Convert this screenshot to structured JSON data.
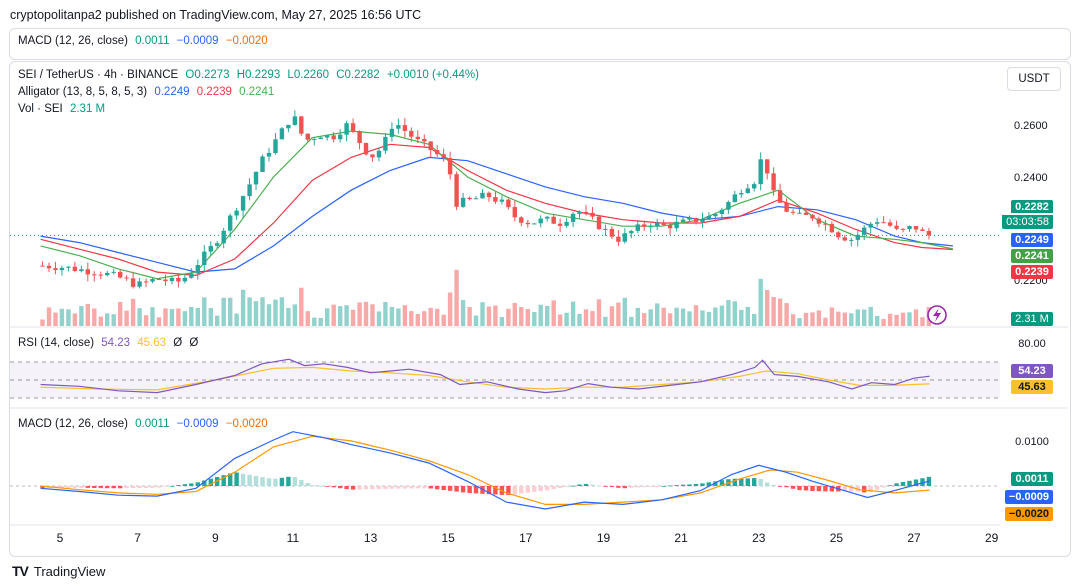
{
  "header": "cryptopolitanpa2 published on TradingView.com, May 27, 2025 16:56 UTC",
  "top_legend": {
    "name": "MACD (12, 26, close)",
    "v1": "0.0011",
    "v2": "−0.0009",
    "v3": "−0.0020"
  },
  "symbol_line": {
    "pair": "SEI / TetherUS · 4h · BINANCE",
    "o": "O0.2273",
    "h": "H0.2293",
    "l": "L0.2260",
    "c": "C0.2282",
    "chg": "+0.0010 (+0.44%)"
  },
  "alligator": {
    "name": "Alligator (13, 8, 5, 8, 5, 3)",
    "jaw": "0.2249",
    "teeth": "0.2239",
    "lips": "0.2241"
  },
  "volume": {
    "name": "Vol · SEI",
    "value": "2.31 M",
    "tag": "2.31 M"
  },
  "currency_button": "USDT",
  "price_axis": {
    "ticks": [
      "0.2600",
      "0.2400",
      "0.2200"
    ],
    "last_price": "0.2282",
    "countdown": "03:03:58",
    "jaw_tag": "0.2249",
    "lips_tag": "0.2241",
    "teeth_tag": "0.2239"
  },
  "rsi": {
    "name": "RSI (14, close)",
    "value": "54.23",
    "ma": "45.63",
    "z1": "Ø",
    "z2": "Ø",
    "level": "80.00"
  },
  "macd": {
    "name": "MACD (12, 26, close)",
    "v1": "0.0011",
    "v2": "−0.0009",
    "v3": "−0.0020",
    "level": "0.0100"
  },
  "x_ticks": [
    "5",
    "7",
    "9",
    "11",
    "13",
    "15",
    "17",
    "19",
    "21",
    "23",
    "25",
    "27",
    "29"
  ],
  "footer": "TradingView",
  "colors": {
    "up": "#26a69a",
    "down": "#ef5350",
    "jaw": "#2962ff",
    "teeth": "#f23645",
    "lips": "#4caf50",
    "rsi": "#7e57c2",
    "rsi_ma": "#fbc02d",
    "macd": "#2962ff",
    "signal": "#ff9800"
  },
  "chart_data": [
    {
      "type": "candlestick",
      "title": "SEI / TetherUS · 4h · BINANCE",
      "x_label_unit": "day of month (May 2025)",
      "x_ticks": [
        5,
        7,
        9,
        11,
        13,
        15,
        17,
        19,
        21,
        23,
        25,
        27,
        29
      ],
      "ylim": [
        0.2085,
        0.2695
      ],
      "y_ticks": [
        0.26,
        0.24,
        0.22
      ],
      "close_path": [
        [
          4.5,
          0.219
        ],
        [
          5.0,
          0.2186
        ],
        [
          5.5,
          0.2178
        ],
        [
          6.0,
          0.217
        ],
        [
          6.5,
          0.2155
        ],
        [
          7.0,
          0.213
        ],
        [
          7.5,
          0.215
        ],
        [
          8.0,
          0.2138
        ],
        [
          8.3,
          0.216
        ],
        [
          8.6,
          0.2205
        ],
        [
          9.0,
          0.226
        ],
        [
          9.4,
          0.234
        ],
        [
          9.8,
          0.242
        ],
        [
          10.2,
          0.251
        ],
        [
          10.6,
          0.258
        ],
        [
          11.0,
          0.265
        ],
        [
          11.3,
          0.257
        ],
        [
          11.7,
          0.259
        ],
        [
          12.0,
          0.258
        ],
        [
          12.4,
          0.262
        ],
        [
          12.7,
          0.257
        ],
        [
          13.0,
          0.252
        ],
        [
          13.3,
          0.255
        ],
        [
          13.6,
          0.263
        ],
        [
          13.9,
          0.26
        ],
        [
          14.2,
          0.257
        ],
        [
          14.6,
          0.254
        ],
        [
          15.0,
          0.25
        ],
        [
          15.2,
          0.238
        ],
        [
          15.6,
          0.239
        ],
        [
          16.0,
          0.2405
        ],
        [
          16.4,
          0.238
        ],
        [
          16.7,
          0.234
        ],
        [
          17.1,
          0.232
        ],
        [
          17.5,
          0.233
        ],
        [
          17.9,
          0.232
        ],
        [
          18.3,
          0.236
        ],
        [
          18.7,
          0.233
        ],
        [
          19.0,
          0.23
        ],
        [
          19.4,
          0.227
        ],
        [
          19.8,
          0.23
        ],
        [
          20.2,
          0.232
        ],
        [
          20.6,
          0.231
        ],
        [
          21.0,
          0.232
        ],
        [
          21.4,
          0.233
        ],
        [
          21.8,
          0.234
        ],
        [
          22.2,
          0.238
        ],
        [
          22.6,
          0.243
        ],
        [
          22.9,
          0.245
        ],
        [
          23.1,
          0.253
        ],
        [
          23.4,
          0.24
        ],
        [
          23.7,
          0.236
        ],
        [
          24.0,
          0.234
        ],
        [
          24.4,
          0.234
        ],
        [
          24.8,
          0.231
        ],
        [
          25.1,
          0.228
        ],
        [
          25.4,
          0.227
        ],
        [
          25.7,
          0.23
        ],
        [
          26.0,
          0.233
        ],
        [
          26.3,
          0.232
        ],
        [
          26.6,
          0.229
        ],
        [
          27.0,
          0.231
        ],
        [
          27.3,
          0.2282
        ]
      ],
      "alligator": {
        "jaw": [
          [
            4.5,
            0.228
          ],
          [
            5.5,
            0.226
          ],
          [
            6.5,
            0.223
          ],
          [
            7.5,
            0.22
          ],
          [
            8.5,
            0.217
          ],
          [
            9.5,
            0.218
          ],
          [
            10.5,
            0.225
          ],
          [
            11.5,
            0.234
          ],
          [
            12.5,
            0.242
          ],
          [
            13.5,
            0.248
          ],
          [
            14.5,
            0.252
          ],
          [
            15.5,
            0.251
          ],
          [
            16.5,
            0.247
          ],
          [
            17.5,
            0.243
          ],
          [
            18.5,
            0.24
          ],
          [
            19.5,
            0.238
          ],
          [
            20.5,
            0.235
          ],
          [
            21.5,
            0.233
          ],
          [
            22.5,
            0.234
          ],
          [
            23.5,
            0.237
          ],
          [
            24.5,
            0.236
          ],
          [
            25.5,
            0.233
          ],
          [
            26.5,
            0.228
          ],
          [
            27.2,
            0.226
          ],
          [
            28.0,
            0.225
          ]
        ],
        "teeth": [
          [
            4.5,
            0.227
          ],
          [
            5.5,
            0.224
          ],
          [
            6.5,
            0.221
          ],
          [
            7.5,
            0.217
          ],
          [
            8.5,
            0.216
          ],
          [
            9.5,
            0.221
          ],
          [
            10.5,
            0.232
          ],
          [
            11.5,
            0.245
          ],
          [
            12.5,
            0.252
          ],
          [
            13.5,
            0.256
          ],
          [
            14.5,
            0.255
          ],
          [
            15.5,
            0.248
          ],
          [
            16.5,
            0.242
          ],
          [
            17.5,
            0.238
          ],
          [
            18.5,
            0.235
          ],
          [
            19.5,
            0.233
          ],
          [
            20.5,
            0.232
          ],
          [
            21.5,
            0.232
          ],
          [
            22.5,
            0.234
          ],
          [
            23.5,
            0.239
          ],
          [
            24.5,
            0.235
          ],
          [
            25.5,
            0.23
          ],
          [
            26.5,
            0.226
          ],
          [
            27.2,
            0.2245
          ],
          [
            28.0,
            0.2239
          ]
        ],
        "lips": [
          [
            4.5,
            0.225
          ],
          [
            5.5,
            0.222
          ],
          [
            6.5,
            0.218
          ],
          [
            7.5,
            0.215
          ],
          [
            8.5,
            0.217
          ],
          [
            9.5,
            0.23
          ],
          [
            10.5,
            0.246
          ],
          [
            11.5,
            0.258
          ],
          [
            12.5,
            0.26
          ],
          [
            13.5,
            0.259
          ],
          [
            14.5,
            0.256
          ],
          [
            15.5,
            0.246
          ],
          [
            16.5,
            0.24
          ],
          [
            17.5,
            0.235
          ],
          [
            18.5,
            0.233
          ],
          [
            19.5,
            0.231
          ],
          [
            20.5,
            0.231
          ],
          [
            21.5,
            0.233
          ],
          [
            22.5,
            0.238
          ],
          [
            23.5,
            0.242
          ],
          [
            24.5,
            0.233
          ],
          [
            25.5,
            0.228
          ],
          [
            26.5,
            0.227
          ],
          [
            27.2,
            0.226
          ],
          [
            28.0,
            0.2241
          ]
        ]
      }
    },
    {
      "type": "line",
      "title": "RSI (14, close)",
      "ylim": [
        20,
        85
      ],
      "bands": [
        70,
        50,
        30
      ],
      "series": [
        {
          "name": "RSI",
          "values": [
            [
              4.5,
              45
            ],
            [
              5.5,
              43
            ],
            [
              6.5,
              38
            ],
            [
              7.5,
              36
            ],
            [
              8.5,
              45
            ],
            [
              9.5,
              55
            ],
            [
              10.2,
              68
            ],
            [
              10.9,
              73
            ],
            [
              11.3,
              66
            ],
            [
              11.8,
              68
            ],
            [
              12.4,
              64
            ],
            [
              13.0,
              58
            ],
            [
              13.5,
              60
            ],
            [
              14.0,
              62
            ],
            [
              14.8,
              56
            ],
            [
              15.3,
              45
            ],
            [
              16.0,
              48
            ],
            [
              16.8,
              40
            ],
            [
              17.5,
              36
            ],
            [
              18.0,
              38
            ],
            [
              18.6,
              46
            ],
            [
              19.2,
              42
            ],
            [
              19.9,
              40
            ],
            [
              20.7,
              44
            ],
            [
              21.5,
              48
            ],
            [
              22.3,
              56
            ],
            [
              22.9,
              64
            ],
            [
              23.1,
              72
            ],
            [
              23.4,
              56
            ],
            [
              24.0,
              54
            ],
            [
              24.8,
              48
            ],
            [
              25.4,
              40
            ],
            [
              25.9,
              47
            ],
            [
              26.5,
              45
            ],
            [
              27.0,
              52
            ],
            [
              27.4,
              54.23
            ]
          ]
        },
        {
          "name": "RSI-based MA",
          "values": [
            [
              4.5,
              42
            ],
            [
              6.0,
              40
            ],
            [
              7.5,
              39
            ],
            [
              9.0,
              50
            ],
            [
              10.5,
              63
            ],
            [
              11.5,
              64
            ],
            [
              12.5,
              60
            ],
            [
              13.5,
              58
            ],
            [
              14.5,
              55
            ],
            [
              15.5,
              48
            ],
            [
              16.5,
              42
            ],
            [
              17.5,
              40
            ],
            [
              18.5,
              42
            ],
            [
              19.5,
              42
            ],
            [
              20.5,
              45
            ],
            [
              21.5,
              48
            ],
            [
              22.5,
              54
            ],
            [
              23.2,
              60
            ],
            [
              24.0,
              57
            ],
            [
              24.8,
              50
            ],
            [
              25.6,
              44
            ],
            [
              26.4,
              44
            ],
            [
              27.4,
              45.63
            ]
          ]
        }
      ]
    },
    {
      "type": "line",
      "title": "MACD (12, 26, close)",
      "ylim": [
        -0.0085,
        0.0135
      ],
      "y_ticks": [
        0.01
      ],
      "series": [
        {
          "name": "MACD",
          "values": [
            [
              4.5,
              -0.0005
            ],
            [
              5.5,
              -0.0012
            ],
            [
              6.5,
              -0.002
            ],
            [
              7.5,
              -0.0022
            ],
            [
              8.5,
              -0.0005
            ],
            [
              9.5,
              0.006
            ],
            [
              10.5,
              0.01
            ],
            [
              11.0,
              0.0118
            ],
            [
              11.8,
              0.0105
            ],
            [
              12.5,
              0.009
            ],
            [
              13.5,
              0.0072
            ],
            [
              14.5,
              0.005
            ],
            [
              15.5,
              0.001
            ],
            [
              16.5,
              -0.0035
            ],
            [
              17.5,
              -0.005
            ],
            [
              18.5,
              -0.0035
            ],
            [
              19.5,
              -0.004
            ],
            [
              20.5,
              -0.003
            ],
            [
              21.5,
              -0.001
            ],
            [
              22.3,
              0.0025
            ],
            [
              23.0,
              0.0045
            ],
            [
              23.7,
              0.003
            ],
            [
              24.4,
              0.001
            ],
            [
              25.2,
              -0.001
            ],
            [
              25.8,
              -0.0025
            ],
            [
              26.5,
              -0.001
            ],
            [
              27.4,
              0.0011
            ]
          ]
        },
        {
          "name": "Signal",
          "values": [
            [
              4.5,
              0.0
            ],
            [
              5.5,
              -0.0008
            ],
            [
              6.5,
              -0.0015
            ],
            [
              7.5,
              -0.0018
            ],
            [
              8.5,
              -0.0012
            ],
            [
              9.5,
              0.003
            ],
            [
              10.5,
              0.0085
            ],
            [
              11.5,
              0.0108
            ],
            [
              12.5,
              0.0098
            ],
            [
              13.5,
              0.0078
            ],
            [
              14.5,
              0.0055
            ],
            [
              15.5,
              0.0025
            ],
            [
              16.5,
              -0.0015
            ],
            [
              17.5,
              -0.004
            ],
            [
              18.5,
              -0.004
            ],
            [
              19.5,
              -0.0035
            ],
            [
              20.5,
              -0.003
            ],
            [
              21.5,
              -0.0015
            ],
            [
              22.5,
              0.0015
            ],
            [
              23.3,
              0.0035
            ],
            [
              24.0,
              0.003
            ],
            [
              24.8,
              0.0012
            ],
            [
              25.6,
              -0.0008
            ],
            [
              26.5,
              -0.0015
            ],
            [
              27.4,
              -0.0009
            ]
          ]
        }
      ]
    }
  ]
}
